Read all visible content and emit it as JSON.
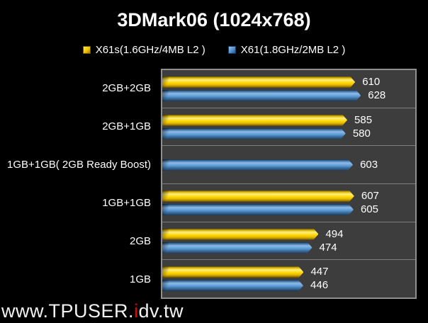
{
  "title": "3DMark06 (1024x768)",
  "chart_data": {
    "type": "bar",
    "orientation": "horizontal",
    "title": "3DMark06 (1024x768)",
    "categories": [
      "2GB+2GB",
      "2GB+1GB",
      "1GB+1GB( 2GB Ready Boost)",
      "1GB+1GB",
      "2GB",
      "1GB"
    ],
    "series": [
      {
        "name": "X61s(1.6GHz/4MB L2 )",
        "color": "#ffd800",
        "values": [
          610,
          585,
          null,
          607,
          494,
          447
        ]
      },
      {
        "name": "X61(1.8GHz/2MB L2 )",
        "color": "#5b9bd5",
        "values": [
          628,
          580,
          603,
          605,
          474,
          446
        ]
      }
    ],
    "xlim": [
      0,
      800
    ],
    "grid": false,
    "legend_position": "top",
    "value_labels": true,
    "plot_background": "#3d3d3d",
    "plot_border_color": "#8f8f8f",
    "background": "#000000",
    "text_color": "#ffffff"
  },
  "watermark": {
    "part1": "www.TPUSER.",
    "part2": "i",
    "part3": "dv.tw",
    "accent_color": "#e60000"
  }
}
